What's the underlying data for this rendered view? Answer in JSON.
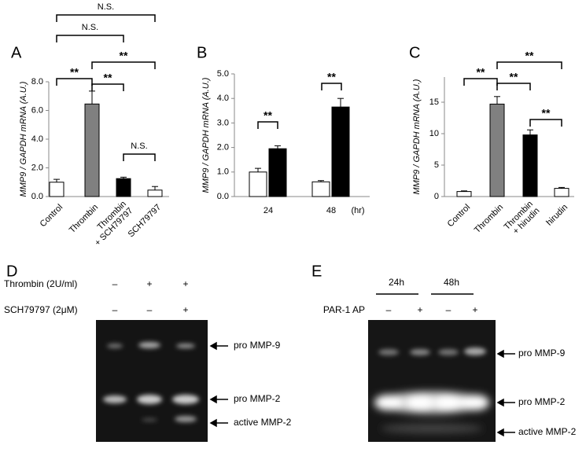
{
  "chart_data": [
    {
      "type": "bar",
      "panel": "A",
      "y_label": "MMP9 / GAPDH mRNA (A.U.)",
      "categories": [
        "Control",
        "Thrombin",
        "Thrombin\n+ SCH79797",
        "SCH79797"
      ],
      "series": [
        {
          "values": [
            1.0,
            6.45,
            1.25,
            0.45
          ],
          "errors": [
            0.2,
            0.9,
            0.1,
            0.25
          ],
          "colors": [
            "#ffffff",
            "#808080",
            "#000000",
            "#ffffff"
          ]
        }
      ],
      "ylim": [
        0,
        8
      ],
      "yticks": [
        {
          "value": 0,
          "label": "0.0"
        },
        {
          "value": 2,
          "label": "2.0"
        },
        {
          "value": 4,
          "label": "4.0"
        },
        {
          "value": 6,
          "label": "6.0"
        },
        {
          "value": 8,
          "label": "8.0"
        }
      ],
      "annotations": [
        "N.S.",
        "N.S.",
        "**",
        "**",
        "**",
        "N.S."
      ]
    },
    {
      "type": "bar",
      "panel": "B",
      "y_label": "MMP9 / GAPDH mRNA (A.U.)",
      "x_label": "(hr)",
      "categories": [
        "24",
        "48"
      ],
      "series": [
        {
          "color": "#ffffff",
          "values": [
            1.0,
            0.6
          ],
          "errors": [
            0.15,
            0.05
          ]
        },
        {
          "color": "#000000",
          "values": [
            1.95,
            3.65
          ],
          "errors": [
            0.12,
            0.35
          ]
        }
      ],
      "ylim": [
        0,
        5
      ],
      "yticks": [
        {
          "value": 0,
          "label": "0.0"
        },
        {
          "value": 1,
          "label": "1.0"
        },
        {
          "value": 2,
          "label": "2.0"
        },
        {
          "value": 3,
          "label": "3.0"
        },
        {
          "value": 4,
          "label": "4.0"
        },
        {
          "value": 5,
          "label": "5.0"
        }
      ],
      "annotations": [
        "**",
        "**"
      ]
    },
    {
      "type": "bar",
      "panel": "C",
      "y_label": "MMP9 / GAPDH mRNA (A.U.)",
      "categories": [
        "Control",
        "Thrombin",
        "Thrombin\n+ hirudin",
        "hirudin"
      ],
      "series": [
        {
          "values": [
            0.8,
            14.7,
            9.8,
            1.3
          ],
          "errors": [
            0.1,
            1.2,
            0.8,
            0.15
          ],
          "colors": [
            "#ffffff",
            "#808080",
            "#000000",
            "#ffffff"
          ]
        }
      ],
      "ylim": [
        0,
        19
      ],
      "yticks": [
        0,
        5,
        10,
        15
      ],
      "annotations": [
        "**",
        "**",
        "**",
        "**"
      ]
    }
  ],
  "gels": {
    "d": {
      "panel": "D",
      "rows": [
        {
          "label": "Thrombin (2U/ml)",
          "signs": [
            "–",
            "+",
            "+"
          ]
        },
        {
          "label": "SCH79797 (2μM)",
          "signs": [
            "–",
            "–",
            "+"
          ]
        }
      ],
      "bands": [
        "pro MMP-9",
        "pro MMP-2",
        "active MMP-2"
      ]
    },
    "e": {
      "panel": "E",
      "times": [
        "24h",
        "48h"
      ],
      "row": {
        "label": "PAR-1 AP",
        "signs": [
          "–",
          "+",
          "–",
          "+"
        ]
      },
      "bands": [
        "pro MMP-9",
        "pro MMP-2",
        "active MMP-2"
      ]
    }
  }
}
